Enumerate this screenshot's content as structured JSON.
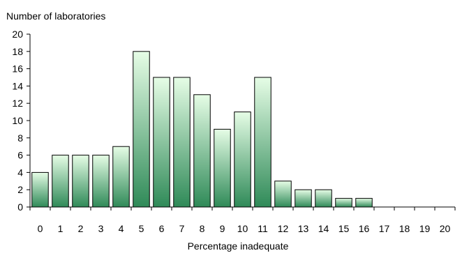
{
  "chart_data": {
    "type": "bar",
    "title": "",
    "ylabel": "Number of laboratories",
    "xlabel": "Percentage inadequate",
    "categories": [
      "0",
      "1",
      "2",
      "3",
      "4",
      "5",
      "6",
      "7",
      "8",
      "9",
      "10",
      "11",
      "12",
      "13",
      "14",
      "15",
      "16",
      "17",
      "18",
      "19",
      "20"
    ],
    "values": [
      4,
      6,
      6,
      6,
      7,
      18,
      15,
      15,
      13,
      9,
      11,
      15,
      3,
      2,
      2,
      1,
      1,
      0,
      0,
      0,
      0
    ],
    "yticks": [
      "0",
      "2",
      "4",
      "6",
      "8",
      "10",
      "12",
      "14",
      "16",
      "18",
      "20"
    ],
    "ylim": [
      0,
      20
    ],
    "grid": false,
    "legend": "none",
    "colors": {
      "bar_top": "#e6fde6",
      "bar_bottom": "#2f8a58",
      "bar_outline": "#000000",
      "axis": "#000000"
    }
  }
}
